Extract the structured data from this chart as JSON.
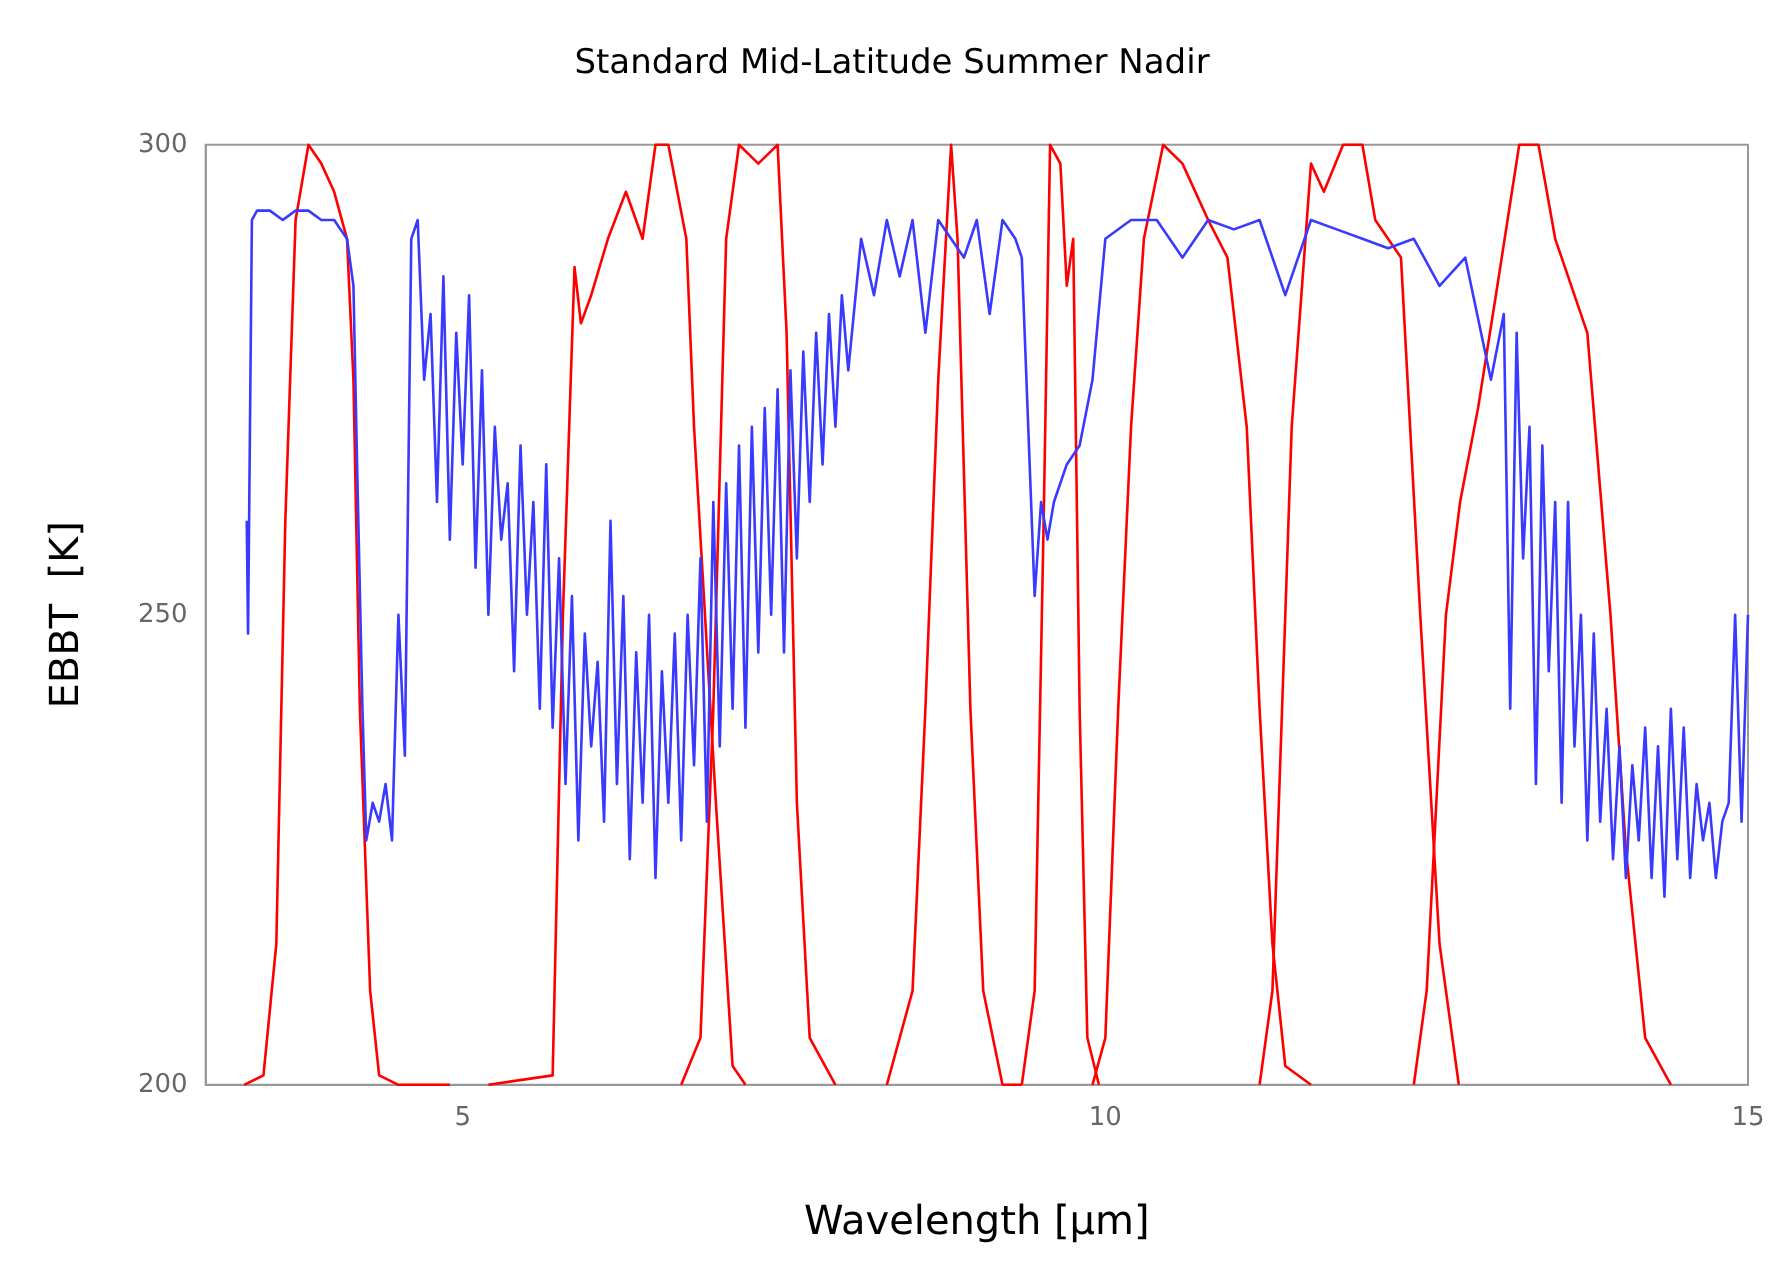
{
  "chart_data": {
    "type": "line",
    "title": "Standard Mid-Latitude Summer Nadir",
    "xlabel": "Wavelength [μm]",
    "ylabel": "EBBT  [K]",
    "xlim": [
      3,
      15
    ],
    "xticks": [
      5,
      10,
      15
    ],
    "ylim": [
      200,
      300
    ],
    "yticks": [
      200,
      250,
      300
    ],
    "grid": false,
    "legend": false,
    "marker": "none",
    "line_style": "solid",
    "series": [
      {
        "color": "#3a3aff",
        "x": [
          3.32,
          3.33,
          3.36,
          3.4,
          3.5,
          3.6,
          3.7,
          3.8,
          3.9,
          4.0,
          4.05,
          4.1,
          4.15,
          4.18,
          4.22,
          4.25,
          4.3,
          4.35,
          4.4,
          4.45,
          4.5,
          4.55,
          4.6,
          4.65,
          4.7,
          4.75,
          4.8,
          4.85,
          4.9,
          4.95,
          5.0,
          5.05,
          5.1,
          5.15,
          5.2,
          5.25,
          5.3,
          5.35,
          5.4,
          5.45,
          5.5,
          5.55,
          5.6,
          5.65,
          5.7,
          5.75,
          5.8,
          5.85,
          5.9,
          5.95,
          6.0,
          6.05,
          6.1,
          6.15,
          6.2,
          6.25,
          6.3,
          6.35,
          6.4,
          6.45,
          6.5,
          6.55,
          6.6,
          6.65,
          6.7,
          6.75,
          6.8,
          6.85,
          6.9,
          6.95,
          7.0,
          7.05,
          7.1,
          7.15,
          7.2,
          7.25,
          7.3,
          7.35,
          7.4,
          7.45,
          7.5,
          7.55,
          7.6,
          7.65,
          7.7,
          7.75,
          7.8,
          7.85,
          7.9,
          7.95,
          8.0,
          8.1,
          8.2,
          8.3,
          8.4,
          8.5,
          8.6,
          8.7,
          8.8,
          8.9,
          9.0,
          9.1,
          9.2,
          9.3,
          9.35,
          9.4,
          9.45,
          9.5,
          9.55,
          9.6,
          9.7,
          9.8,
          9.9,
          10.0,
          10.2,
          10.4,
          10.6,
          10.8,
          11.0,
          11.2,
          11.4,
          11.6,
          11.8,
          12.0,
          12.2,
          12.4,
          12.6,
          12.8,
          13.0,
          13.1,
          13.15,
          13.2,
          13.25,
          13.3,
          13.35,
          13.4,
          13.45,
          13.5,
          13.55,
          13.6,
          13.65,
          13.7,
          13.75,
          13.8,
          13.85,
          13.9,
          13.95,
          14.0,
          14.05,
          14.1,
          14.15,
          14.2,
          14.25,
          14.3,
          14.35,
          14.4,
          14.45,
          14.5,
          14.55,
          14.6,
          14.65,
          14.7,
          14.75,
          14.8,
          14.85,
          14.9,
          14.95,
          15.0
        ],
        "values": [
          260,
          248,
          292,
          293,
          293,
          292,
          293,
          293,
          292,
          292,
          291,
          290,
          285,
          265,
          240,
          226,
          230,
          228,
          232,
          226,
          250,
          235,
          290,
          292,
          275,
          282,
          262,
          286,
          258,
          280,
          266,
          284,
          255,
          276,
          250,
          270,
          258,
          264,
          244,
          268,
          250,
          262,
          240,
          266,
          238,
          256,
          232,
          252,
          226,
          248,
          236,
          245,
          228,
          260,
          232,
          252,
          224,
          246,
          230,
          250,
          222,
          244,
          230,
          248,
          226,
          250,
          234,
          256,
          228,
          262,
          236,
          264,
          240,
          268,
          238,
          270,
          246,
          272,
          250,
          274,
          246,
          276,
          256,
          278,
          262,
          280,
          266,
          282,
          270,
          284,
          276,
          290,
          284,
          292,
          286,
          292,
          280,
          292,
          290,
          288,
          292,
          282,
          292,
          290,
          288,
          270,
          252,
          262,
          258,
          262,
          266,
          268,
          275,
          290,
          292,
          292,
          288,
          292,
          291,
          292,
          284,
          292,
          291,
          290,
          289,
          290,
          285,
          288,
          275,
          282,
          240,
          280,
          256,
          270,
          232,
          268,
          244,
          262,
          230,
          262,
          236,
          250,
          226,
          248,
          228,
          240,
          224,
          236,
          222,
          234,
          226,
          238,
          222,
          236,
          220,
          240,
          224,
          238,
          222,
          232,
          226,
          230,
          222,
          228,
          230,
          250,
          228,
          250
        ]
      },
      {
        "color": "#ff0000",
        "x": [
          3.3,
          3.45,
          3.55,
          3.62,
          3.7,
          3.8,
          3.9,
          4.0,
          4.1,
          4.15,
          4.2,
          4.28,
          4.35,
          4.5,
          4.9
        ],
        "values": [
          200,
          201,
          215,
          260,
          292,
          300,
          298,
          295,
          290,
          275,
          240,
          210,
          201,
          200,
          200
        ]
      },
      {
        "color": "#ff0000",
        "x": [
          5.2,
          5.7,
          5.78,
          5.87,
          5.92,
          6.0,
          6.13,
          6.27,
          6.4,
          6.5,
          6.6,
          6.74,
          6.8,
          6.97,
          7.1,
          7.2
        ],
        "values": [
          200,
          201,
          250,
          287,
          281,
          284,
          290,
          295,
          290,
          300,
          300,
          290,
          270,
          230,
          202,
          200
        ]
      },
      {
        "color": "#ff0000",
        "x": [
          6.7,
          6.85,
          6.95,
          7.05,
          7.15,
          7.3,
          7.45,
          7.52,
          7.6,
          7.7,
          7.9
        ],
        "values": [
          200,
          205,
          240,
          290,
          300,
          298,
          300,
          280,
          230,
          205,
          200
        ]
      },
      {
        "color": "#ff0000",
        "x": [
          8.3,
          8.5,
          8.6,
          8.7,
          8.8,
          8.85,
          8.95,
          9.05,
          9.2,
          9.35
        ],
        "values": [
          200,
          210,
          240,
          275,
          300,
          290,
          240,
          210,
          200,
          200
        ]
      },
      {
        "color": "#ff0000",
        "x": [
          9.35,
          9.45,
          9.52,
          9.57,
          9.65,
          9.7,
          9.75,
          9.8,
          9.86,
          9.95
        ],
        "values": [
          200,
          210,
          260,
          300,
          298,
          285,
          290,
          240,
          205,
          200
        ]
      },
      {
        "color": "#ff0000",
        "x": [
          9.9,
          10.0,
          10.1,
          10.2,
          10.3,
          10.45,
          10.6,
          10.8,
          10.95,
          11.1,
          11.2,
          11.3,
          11.4,
          11.6
        ],
        "values": [
          200,
          205,
          240,
          270,
          290,
          300,
          298,
          292,
          288,
          270,
          240,
          215,
          202,
          200
        ]
      },
      {
        "color": "#ff0000",
        "x": [
          11.2,
          11.3,
          11.45,
          11.6,
          11.7,
          11.85,
          12.0,
          12.1,
          12.3,
          12.45,
          12.6,
          12.75
        ],
        "values": [
          200,
          210,
          270,
          298,
          295,
          300,
          300,
          292,
          288,
          250,
          215,
          200
        ]
      },
      {
        "color": "#ff0000",
        "x": [
          12.4,
          12.5,
          12.65,
          12.76,
          12.9,
          13.05,
          13.22,
          13.37,
          13.5,
          13.75,
          13.93,
          14.05,
          14.2,
          14.4
        ],
        "values": [
          200,
          210,
          250,
          262,
          272,
          285,
          300,
          300,
          290,
          280,
          250,
          225,
          205,
          200
        ]
      }
    ]
  }
}
